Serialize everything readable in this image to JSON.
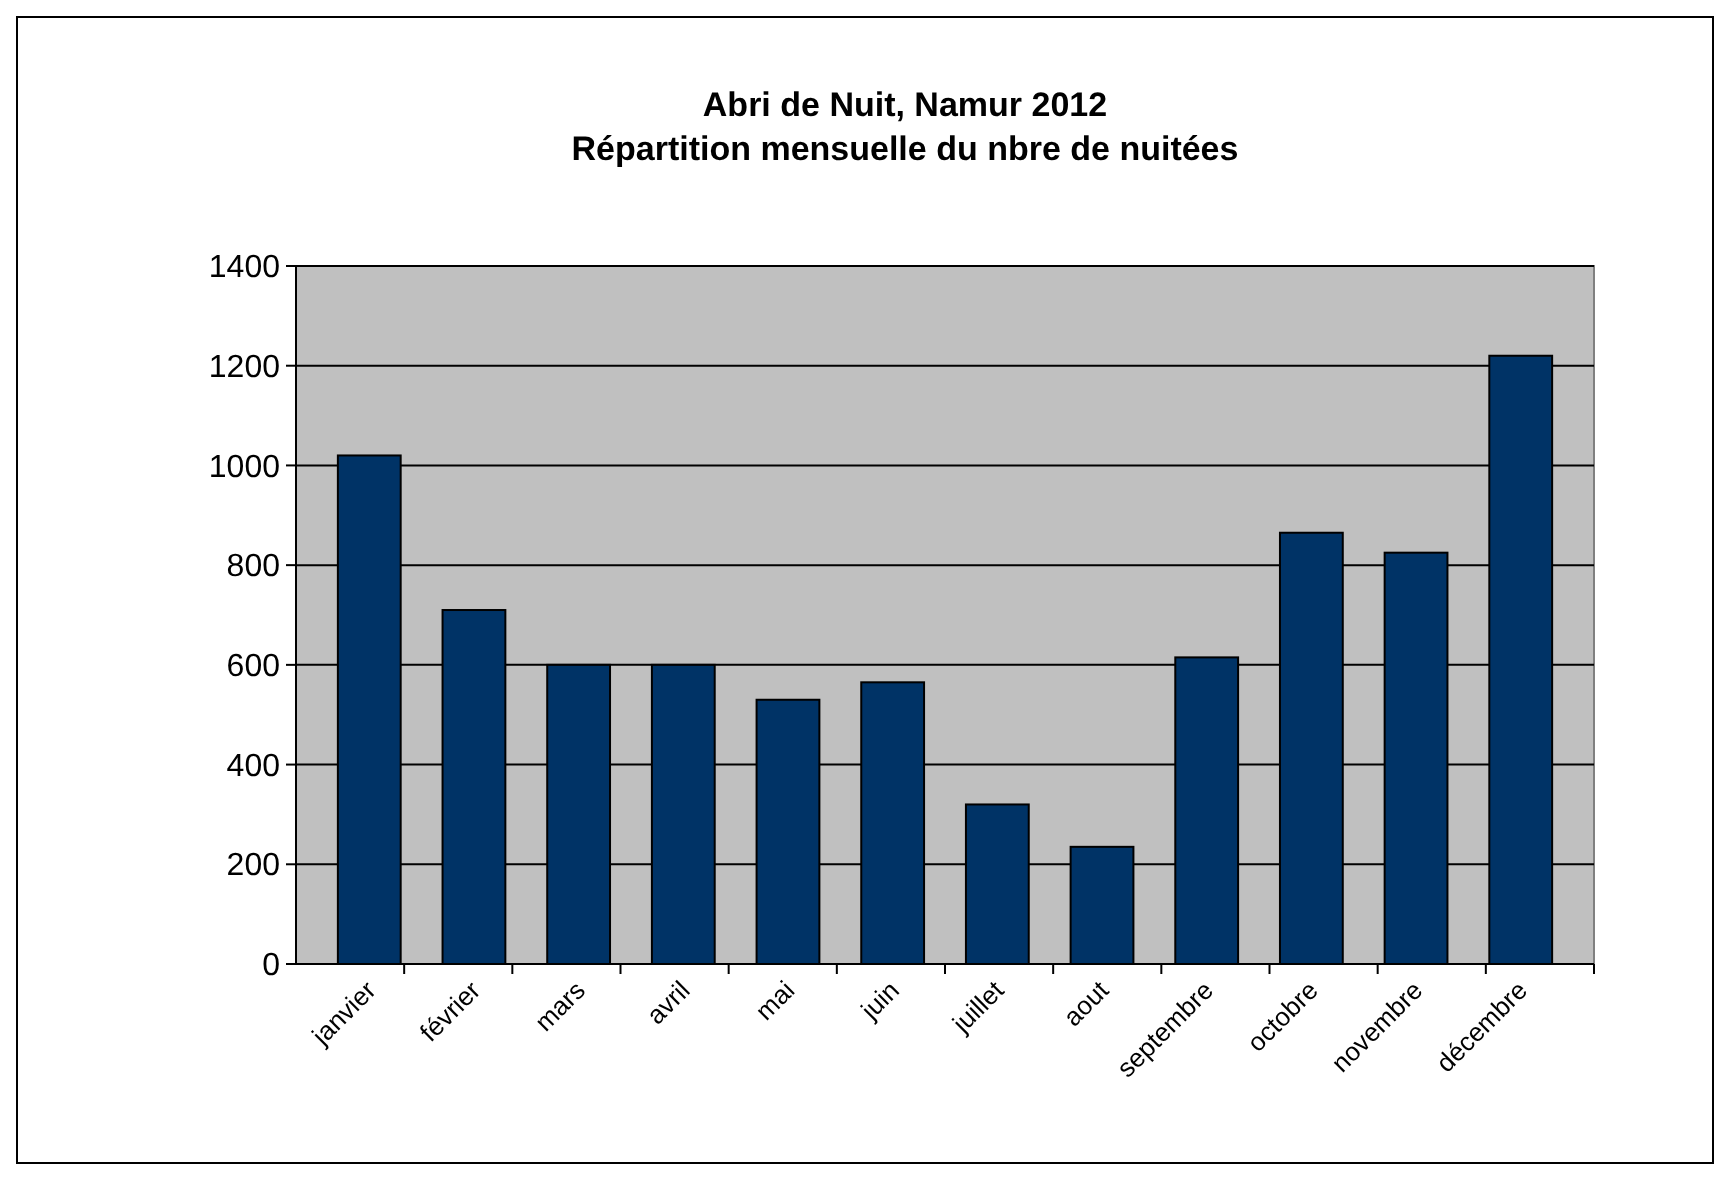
{
  "chart_data": {
    "type": "bar",
    "title": "Abri de Nuit, Namur 2012\nRépartition mensuelle du nbre de nuitées",
    "categories": [
      "janvier",
      "février",
      "mars",
      "avril",
      "mai",
      "juin",
      "juillet",
      "aout",
      "septembre",
      "octobre",
      "novembre",
      "décembre"
    ],
    "values": [
      1020,
      710,
      600,
      600,
      530,
      565,
      320,
      235,
      615,
      865,
      825,
      1220
    ],
    "color": "#003366",
    "ylim": [
      0,
      1400
    ],
    "yticks": [
      0,
      200,
      400,
      600,
      800,
      1000,
      1200,
      1400
    ],
    "grid": "y"
  }
}
